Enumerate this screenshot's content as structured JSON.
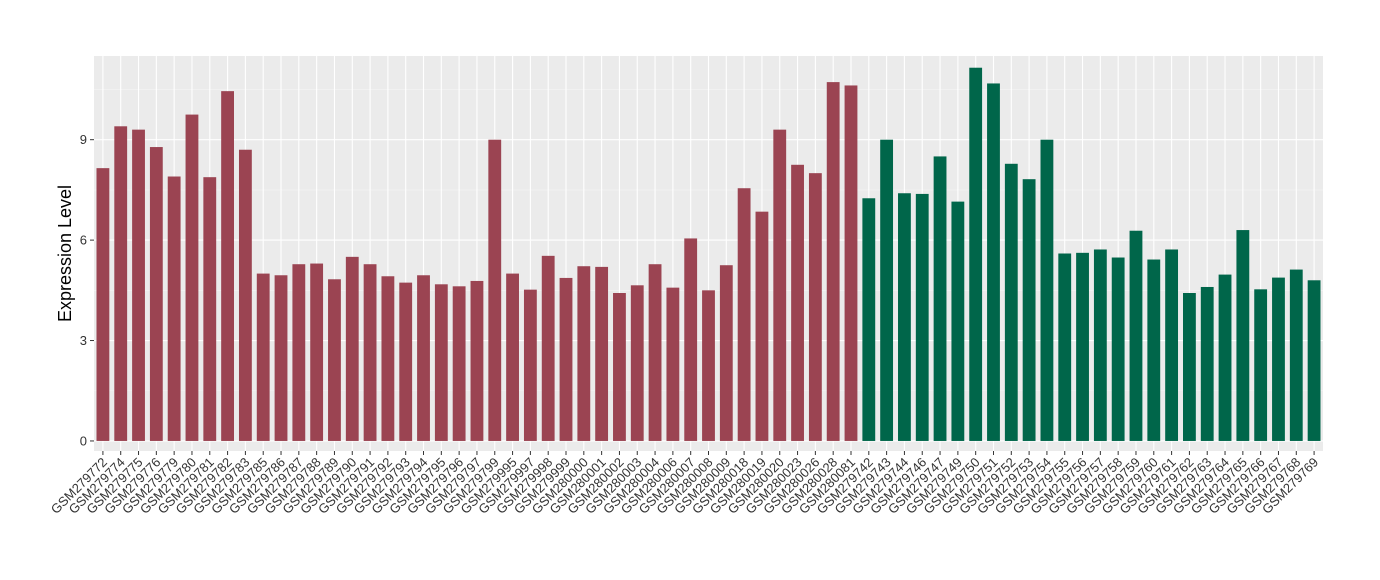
{
  "chart_data": {
    "type": "bar",
    "title": "",
    "xlabel": "",
    "ylabel": "Expression Level",
    "ylim": [
      -0.3,
      11.5
    ],
    "yticks": [
      0,
      3,
      6,
      9
    ],
    "grid": true,
    "legend": "none",
    "colors": {
      "group1": "#9B4452",
      "group2": "#00664A",
      "panel_bg": "#EBEBEB",
      "grid_major": "#FFFFFF",
      "grid_minor": "#F5F5F5"
    },
    "categories": [
      "GSM279772",
      "GSM279774",
      "GSM279775",
      "GSM279776",
      "GSM279779",
      "GSM279780",
      "GSM279781",
      "GSM279782",
      "GSM279783",
      "GSM279785",
      "GSM279786",
      "GSM279787",
      "GSM279788",
      "GSM279789",
      "GSM279790",
      "GSM279791",
      "GSM279792",
      "GSM279793",
      "GSM279794",
      "GSM279795",
      "GSM279796",
      "GSM279797",
      "GSM279799",
      "GSM279995",
      "GSM279997",
      "GSM279998",
      "GSM279999",
      "GSM280000",
      "GSM280001",
      "GSM280002",
      "GSM280003",
      "GSM280004",
      "GSM280006",
      "GSM280007",
      "GSM280008",
      "GSM280009",
      "GSM280018",
      "GSM280019",
      "GSM280020",
      "GSM280023",
      "GSM280026",
      "GSM280028",
      "GSM280081",
      "GSM279742",
      "GSM279743",
      "GSM279744",
      "GSM279746",
      "GSM279747",
      "GSM279749",
      "GSM279750",
      "GSM279751",
      "GSM279752",
      "GSM279753",
      "GSM279754",
      "GSM279755",
      "GSM279756",
      "GSM279757",
      "GSM279758",
      "GSM279759",
      "GSM279760",
      "GSM279761",
      "GSM279762",
      "GSM279763",
      "GSM279764",
      "GSM279765",
      "GSM279766",
      "GSM279767",
      "GSM279768",
      "GSM279769"
    ],
    "values": [
      8.15,
      9.4,
      9.3,
      8.78,
      7.9,
      9.75,
      7.88,
      10.45,
      8.7,
      5.0,
      4.95,
      5.28,
      5.3,
      4.83,
      5.5,
      5.28,
      4.92,
      4.73,
      4.95,
      4.68,
      4.62,
      4.78,
      9.0,
      5.0,
      4.52,
      5.53,
      4.87,
      5.22,
      5.2,
      4.42,
      4.65,
      5.28,
      4.58,
      6.05,
      4.5,
      5.25,
      7.55,
      6.85,
      9.3,
      8.25,
      8.0,
      10.72,
      10.62,
      7.25,
      9.0,
      7.4,
      7.38,
      8.5,
      7.15,
      11.15,
      10.68,
      8.28,
      7.82,
      9.0,
      5.6,
      5.62,
      5.72,
      5.48,
      6.28,
      5.42,
      5.72,
      4.42,
      4.6,
      4.97,
      6.3,
      4.53,
      4.88,
      5.12,
      4.8
    ],
    "groups": [
      1,
      1,
      1,
      1,
      1,
      1,
      1,
      1,
      1,
      1,
      1,
      1,
      1,
      1,
      1,
      1,
      1,
      1,
      1,
      1,
      1,
      1,
      1,
      1,
      1,
      1,
      1,
      1,
      1,
      1,
      1,
      1,
      1,
      1,
      1,
      1,
      1,
      1,
      1,
      1,
      1,
      1,
      1,
      2,
      2,
      2,
      2,
      2,
      2,
      2,
      2,
      2,
      2,
      2,
      2,
      2,
      2,
      2,
      2,
      2,
      2,
      2,
      2,
      2,
      2,
      2,
      2,
      2,
      2
    ]
  }
}
